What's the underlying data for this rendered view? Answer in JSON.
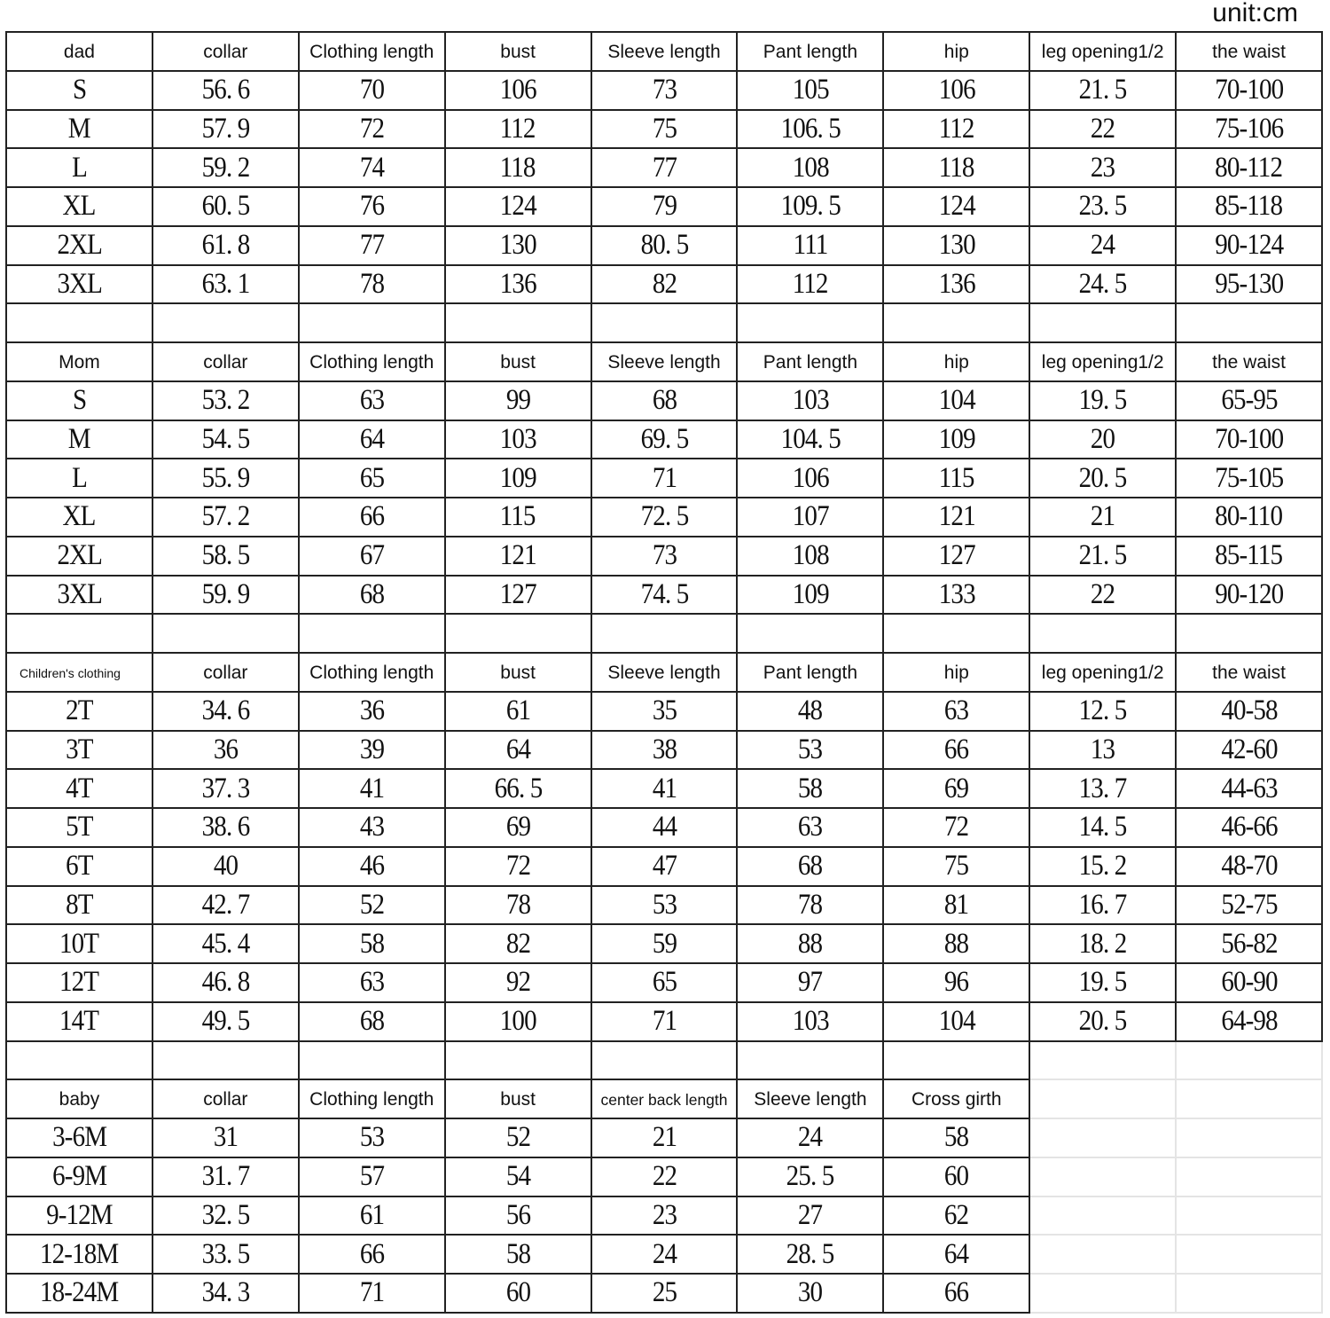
{
  "unit_label": "unit:cm",
  "sections": [
    {
      "name": "dad",
      "header": [
        "dad",
        "collar",
        "Clothing length",
        "bust",
        "Sleeve length",
        "Pant length",
        "hip",
        "leg opening1/2",
        "the waist"
      ],
      "rows": [
        [
          "S",
          "56. 6",
          "70",
          "106",
          "73",
          "105",
          "106",
          "21. 5",
          "70-100"
        ],
        [
          "M",
          "57. 9",
          "72",
          "112",
          "75",
          "106. 5",
          "112",
          "22",
          "75-106"
        ],
        [
          "L",
          "59. 2",
          "74",
          "118",
          "77",
          "108",
          "118",
          "23",
          "80-112"
        ],
        [
          "XL",
          "60. 5",
          "76",
          "124",
          "79",
          "109. 5",
          "124",
          "23. 5",
          "85-118"
        ],
        [
          "2XL",
          "61. 8",
          "77",
          "130",
          "80. 5",
          "111",
          "130",
          "24",
          "90-124"
        ],
        [
          "3XL",
          "63. 1",
          "78",
          "136",
          "82",
          "112",
          "136",
          "24. 5",
          "95-130"
        ]
      ]
    },
    {
      "name": "mom",
      "header": [
        "Mom",
        "collar",
        "Clothing length",
        "bust",
        "Sleeve length",
        "Pant length",
        "hip",
        "leg opening1/2",
        "the waist"
      ],
      "rows": [
        [
          "S",
          "53. 2",
          "63",
          "99",
          "68",
          "103",
          "104",
          "19. 5",
          "65-95"
        ],
        [
          "M",
          "54. 5",
          "64",
          "103",
          "69. 5",
          "104. 5",
          "109",
          "20",
          "70-100"
        ],
        [
          "L",
          "55. 9",
          "65",
          "109",
          "71",
          "106",
          "115",
          "20. 5",
          "75-105"
        ],
        [
          "XL",
          "57. 2",
          "66",
          "115",
          "72. 5",
          "107",
          "121",
          "21",
          "80-110"
        ],
        [
          "2XL",
          "58. 5",
          "67",
          "121",
          "73",
          "108",
          "127",
          "21. 5",
          "85-115"
        ],
        [
          "3XL",
          "59. 9",
          "68",
          "127",
          "74. 5",
          "109",
          "133",
          "22",
          "90-120"
        ]
      ]
    },
    {
      "name": "children",
      "header": [
        "Children's clothing",
        "collar",
        "Clothing length",
        "bust",
        "Sleeve length",
        "Pant length",
        "hip",
        "leg opening1/2",
        "the waist"
      ],
      "rows": [
        [
          "2T",
          "34. 6",
          "36",
          "61",
          "35",
          "48",
          "63",
          "12. 5",
          "40-58"
        ],
        [
          "3T",
          "36",
          "39",
          "64",
          "38",
          "53",
          "66",
          "13",
          "42-60"
        ],
        [
          "4T",
          "37. 3",
          "41",
          "66. 5",
          "41",
          "58",
          "69",
          "13. 7",
          "44-63"
        ],
        [
          "5T",
          "38. 6",
          "43",
          "69",
          "44",
          "63",
          "72",
          "14. 5",
          "46-66"
        ],
        [
          "6T",
          "40",
          "46",
          "72",
          "47",
          "68",
          "75",
          "15. 2",
          "48-70"
        ],
        [
          "8T",
          "42. 7",
          "52",
          "78",
          "53",
          "78",
          "81",
          "16. 7",
          "52-75"
        ],
        [
          "10T",
          "45. 4",
          "58",
          "82",
          "59",
          "88",
          "88",
          "18. 2",
          "56-82"
        ],
        [
          "12T",
          "46. 8",
          "63",
          "92",
          "65",
          "97",
          "96",
          "19. 5",
          "60-90"
        ],
        [
          "14T",
          "49. 5",
          "68",
          "100",
          "71",
          "103",
          "104",
          "20. 5",
          "64-98"
        ]
      ]
    },
    {
      "name": "baby",
      "header": [
        "baby",
        "collar",
        "Clothing length",
        "bust",
        "center back length",
        "Sleeve length",
        "Cross girth"
      ],
      "rows": [
        [
          "3-6M",
          "31",
          "53",
          "52",
          "21",
          "24",
          "58"
        ],
        [
          "6-9M",
          "31. 7",
          "57",
          "54",
          "22",
          "25. 5",
          "60"
        ],
        [
          "9-12M",
          "32. 5",
          "61",
          "56",
          "23",
          "27",
          "62"
        ],
        [
          "12-18M",
          "33. 5",
          "66",
          "58",
          "24",
          "28. 5",
          "64"
        ],
        [
          "18-24M",
          "34. 3",
          "71",
          "60",
          "25",
          "30",
          "66"
        ]
      ]
    }
  ]
}
